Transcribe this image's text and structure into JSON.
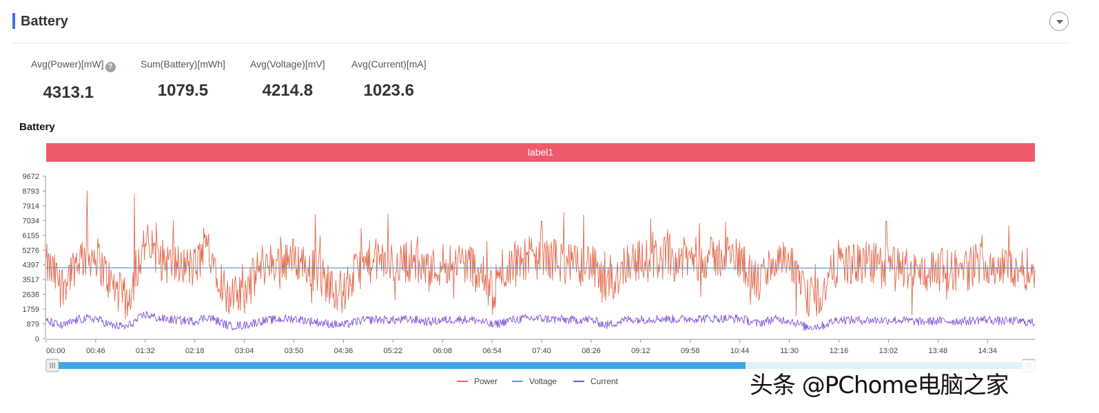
{
  "header": {
    "title": "Battery"
  },
  "stats": [
    {
      "label": "Avg(Power)[mW]",
      "value": "4313.1",
      "help": "?"
    },
    {
      "label": "Sum(Battery)[mWh]",
      "value": "1079.5"
    },
    {
      "label": "Avg(Voltage)[mV]",
      "value": "4214.8"
    },
    {
      "label": "Avg(Current)[mA]",
      "value": "1023.6"
    }
  ],
  "watermark": "头条 @PChome电脑之家",
  "chart_data": {
    "type": "line",
    "title": "Battery",
    "label_band": "label1",
    "ylim": [
      0,
      9672
    ],
    "y_ticks": [
      "9672",
      "8793",
      "7914",
      "7034",
      "6155",
      "5276",
      "4397",
      "3517",
      "2638",
      "1759",
      "879",
      "0"
    ],
    "x_ticks": [
      "00:00",
      "00:46",
      "01:32",
      "02:18",
      "03:04",
      "03:50",
      "04:36",
      "05:22",
      "06:08",
      "06:54",
      "07:40",
      "08:26",
      "09:12",
      "09:58",
      "10:44",
      "11:30",
      "12:16",
      "13:02",
      "13:48",
      "14:34"
    ],
    "x_range_minutes": [
      0,
      918
    ],
    "grid": false,
    "legend_position": "bottom",
    "colors": {
      "Power": "#e0684b",
      "Voltage": "#5b9bd5",
      "Current": "#7b52d6",
      "label_band": "#ee5a6a",
      "slider": "#3ba7e8"
    },
    "series": [
      {
        "name": "Power",
        "color": "#e0684b",
        "x_minutes": [
          0,
          15,
          30,
          46,
          60,
          75,
          92,
          105,
          120,
          138,
          150,
          170,
          184,
          200,
          215,
          230,
          245,
          260,
          276,
          290,
          305,
          322,
          340,
          355,
          368,
          385,
          400,
          415,
          430,
          445,
          460,
          475,
          490,
          505,
          520,
          540,
          555,
          570,
          585,
          600,
          615,
          630,
          645,
          660,
          675,
          690,
          705,
          720,
          735,
          750,
          765,
          780,
          795,
          810,
          825,
          840,
          855,
          870,
          885,
          900,
          918
        ],
        "values": [
          4400,
          3200,
          4800,
          5000,
          3300,
          2200,
          5800,
          4700,
          4400,
          4200,
          5600,
          2300,
          2700,
          4400,
          4600,
          4800,
          4300,
          3400,
          2700,
          4200,
          4700,
          4400,
          4700,
          4000,
          4500,
          4600,
          4300,
          2600,
          4500,
          4800,
          4800,
          4700,
          4300,
          4600,
          2800,
          4700,
          4600,
          4800,
          4700,
          4800,
          4800,
          4900,
          4800,
          3200,
          4600,
          4500,
          2400,
          2600,
          4600,
          4400,
          4500,
          4300,
          4300,
          3900,
          4100,
          4100,
          4100,
          4700,
          4200,
          4300,
          4000
        ],
        "peaks": [
          {
            "x_min": 38,
            "value": 8793
          },
          {
            "x_min": 82,
            "value": 8600
          },
          {
            "x_min": 250,
            "value": 7400
          },
          {
            "x_min": 460,
            "value": 7000
          },
          {
            "x_min": 780,
            "value": 7000
          }
        ]
      },
      {
        "name": "Voltage",
        "color": "#5b9bd5",
        "x_minutes": [
          0,
          100,
          300,
          600,
          918
        ],
        "values": [
          4230,
          4215,
          4210,
          4205,
          4200
        ]
      },
      {
        "name": "Current",
        "color": "#7b52d6",
        "x_minutes": [
          0,
          15,
          30,
          46,
          60,
          75,
          92,
          105,
          120,
          138,
          150,
          170,
          184,
          200,
          215,
          230,
          245,
          260,
          276,
          290,
          305,
          322,
          340,
          355,
          368,
          385,
          400,
          415,
          430,
          445,
          460,
          475,
          490,
          505,
          520,
          540,
          555,
          570,
          585,
          600,
          615,
          630,
          645,
          660,
          675,
          690,
          705,
          720,
          735,
          750,
          765,
          780,
          795,
          810,
          825,
          840,
          855,
          870,
          885,
          900,
          918
        ],
        "values": [
          1050,
          750,
          1150,
          1200,
          800,
          700,
          1450,
          1200,
          1100,
          1050,
          1300,
          750,
          800,
          1050,
          1150,
          1200,
          1050,
          900,
          800,
          1050,
          1150,
          1100,
          1150,
          1000,
          1100,
          1150,
          1100,
          800,
          1100,
          1200,
          1200,
          1150,
          1100,
          1150,
          800,
          1150,
          1150,
          1200,
          1150,
          1200,
          1200,
          1200,
          1200,
          900,
          1150,
          1100,
          700,
          750,
          1150,
          1100,
          1100,
          1100,
          1100,
          1000,
          1050,
          1050,
          1050,
          1150,
          1050,
          1050,
          950
        ]
      }
    ]
  }
}
